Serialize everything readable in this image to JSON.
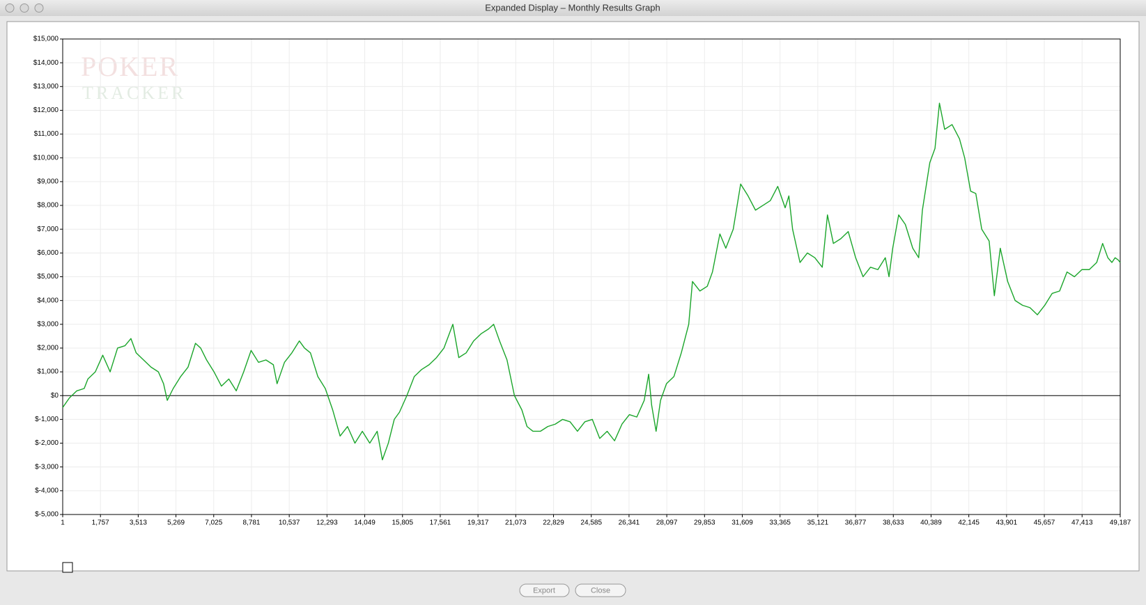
{
  "window": {
    "title": "Expanded Display – Monthly Results Graph",
    "logo_lines": [
      "POKER",
      "TRACKER"
    ],
    "buttons": [
      "Export",
      "Close"
    ]
  },
  "chart_data": {
    "type": "line",
    "color": "#1aa52a",
    "grid": true,
    "x": [
      1,
      311,
      656,
      1001,
      1173,
      1518,
      1863,
      2208,
      2553,
      2898,
      3174,
      3416,
      3761,
      4106,
      4451,
      4692,
      4865,
      5141,
      5486,
      5831,
      6176,
      6417,
      6693,
      7038,
      7383,
      7728,
      8073,
      8418,
      8763,
      9108,
      9453,
      9798,
      9971,
      10316,
      10661,
      11006,
      11247,
      11523,
      11868,
      12213,
      12558,
      12903,
      13248,
      13593,
      13938,
      14283,
      14628,
      14870,
      15146,
      15422,
      15663,
      16008,
      16353,
      16698,
      17043,
      17388,
      17733,
      18147,
      18423,
      18768,
      19113,
      19458,
      19803,
      20045,
      20321,
      20666,
      21011,
      21356,
      21597,
      21873,
      22218,
      22563,
      22908,
      23253,
      23598,
      23943,
      24288,
      24633,
      24978,
      25323,
      25668,
      26013,
      26358,
      26703,
      27048,
      27255,
      27393,
      27600,
      27807,
      28083,
      28428,
      28773,
      29118,
      29291,
      29636,
      29981,
      30222,
      30567,
      30843,
      31188,
      31533,
      31878,
      32223,
      32568,
      32913,
      33258,
      33603,
      33776,
      33948,
      34293,
      34638,
      34983,
      35328,
      35570,
      35846,
      36191,
      36536,
      36881,
      37226,
      37571,
      37916,
      38261,
      38433,
      38606,
      38882,
      39192,
      39537,
      39813,
      39986,
      40331,
      40572,
      40779,
      41021,
      41366,
      41711,
      41952,
      42228,
      42470,
      42746,
      43091,
      43332,
      43608,
      43953,
      44298,
      44643,
      44988,
      45333,
      45678,
      46023,
      46368,
      46713,
      47058,
      47403,
      47748,
      48093,
      48369,
      48611,
      48800,
      48950,
      49100,
      49187
    ],
    "values": [
      -500,
      -100,
      200,
      300,
      700,
      1000,
      1700,
      1000,
      2000,
      2100,
      2400,
      1800,
      1500,
      1200,
      1000,
      500,
      -200,
      300,
      800,
      1200,
      2200,
      2000,
      1500,
      1000,
      400,
      700,
      200,
      1000,
      1900,
      1400,
      1500,
      1300,
      500,
      1400,
      1800,
      2300,
      2000,
      1800,
      800,
      300,
      -600,
      -1700,
      -1300,
      -2000,
      -1500,
      -2000,
      -1500,
      -2700,
      -2000,
      -1000,
      -700,
      0,
      800,
      1100,
      1300,
      1600,
      2000,
      3000,
      1600,
      1800,
      2300,
      2600,
      2800,
      3000,
      2300,
      1500,
      0,
      -600,
      -1300,
      -1500,
      -1500,
      -1300,
      -1200,
      -1000,
      -1100,
      -1500,
      -1100,
      -1000,
      -1800,
      -1500,
      -1900,
      -1200,
      -800,
      -900,
      -200,
      900,
      -400,
      -1500,
      -200,
      500,
      800,
      1800,
      3000,
      4800,
      4400,
      4600,
      5200,
      6800,
      6200,
      7000,
      8900,
      8400,
      7800,
      8000,
      8200,
      8800,
      7900,
      8400,
      7000,
      5600,
      6000,
      5800,
      5400,
      7600,
      6400,
      6600,
      6900,
      5800,
      5000,
      5400,
      5300,
      5800,
      5000,
      6200,
      7600,
      7200,
      6200,
      5800,
      7800,
      9800,
      10400,
      12300,
      11200,
      11400,
      10800,
      10000,
      8600,
      8500,
      7000,
      6500,
      4200,
      6200,
      4800,
      4000,
      3800,
      3700,
      3400,
      3800,
      4300,
      4400,
      5200,
      5000,
      5300,
      5300,
      5600,
      6400,
      5800,
      5600,
      5800,
      5700,
      5600
    ],
    "xlim": [
      1,
      49187
    ],
    "xticks": [
      1,
      {
        "value": 1757,
        "label": "1,757"
      },
      {
        "value": 3513,
        "label": "3,513"
      },
      {
        "value": 5269,
        "label": "5,269"
      },
      {
        "value": 7025,
        "label": "7,025"
      },
      {
        "value": 8781,
        "label": "8,781"
      },
      {
        "value": 10537,
        "label": "10,537"
      },
      {
        "value": 12293,
        "label": "12,293"
      },
      {
        "value": 14049,
        "label": "14,049"
      },
      {
        "value": 15805,
        "label": "15,805"
      },
      {
        "value": 17561,
        "label": "17,561"
      },
      {
        "value": 19317,
        "label": "19,317"
      },
      {
        "value": 21073,
        "label": "21,073"
      },
      {
        "value": 22829,
        "label": "22,829"
      },
      {
        "value": 24585,
        "label": "24,585"
      },
      {
        "value": 26341,
        "label": "26,341"
      },
      {
        "value": 28097,
        "label": "28,097"
      },
      {
        "value": 29853,
        "label": "29,853"
      },
      {
        "value": 31609,
        "label": "31,609"
      },
      {
        "value": 33365,
        "label": "33,365"
      },
      {
        "value": 35121,
        "label": "35,121"
      },
      {
        "value": 36877,
        "label": "36,877"
      },
      {
        "value": 38633,
        "label": "38,633"
      },
      {
        "value": 40389,
        "label": "40,389"
      },
      {
        "value": 42145,
        "label": "42,145"
      },
      {
        "value": 43901,
        "label": "43,901"
      },
      {
        "value": 45657,
        "label": "45,657"
      },
      {
        "value": 47413,
        "label": "47,413"
      },
      {
        "value": 49187,
        "label": "49,187"
      }
    ],
    "ylim": [
      -5000,
      15000
    ],
    "yticks": [
      {
        "value": -5000,
        "label": "$-5,000"
      },
      {
        "value": -4000,
        "label": "$-4,000"
      },
      {
        "value": -3000,
        "label": "$-3,000"
      },
      {
        "value": -2000,
        "label": "$-2,000"
      },
      {
        "value": -1000,
        "label": "$-1,000"
      },
      {
        "value": 0,
        "label": "$0"
      },
      {
        "value": 1000,
        "label": "$1,000"
      },
      {
        "value": 2000,
        "label": "$2,000"
      },
      {
        "value": 3000,
        "label": "$3,000"
      },
      {
        "value": 4000,
        "label": "$4,000"
      },
      {
        "value": 5000,
        "label": "$5,000"
      },
      {
        "value": 6000,
        "label": "$6,000"
      },
      {
        "value": 7000,
        "label": "$7,000"
      },
      {
        "value": 8000,
        "label": "$8,000"
      },
      {
        "value": 9000,
        "label": "$9,000"
      },
      {
        "value": 10000,
        "label": "$10,000"
      },
      {
        "value": 11000,
        "label": "$11,000"
      },
      {
        "value": 12000,
        "label": "$12,000"
      },
      {
        "value": 13000,
        "label": "$13,000"
      },
      {
        "value": 14000,
        "label": "$14,000"
      },
      {
        "value": 15000,
        "label": "$15,000"
      }
    ]
  }
}
